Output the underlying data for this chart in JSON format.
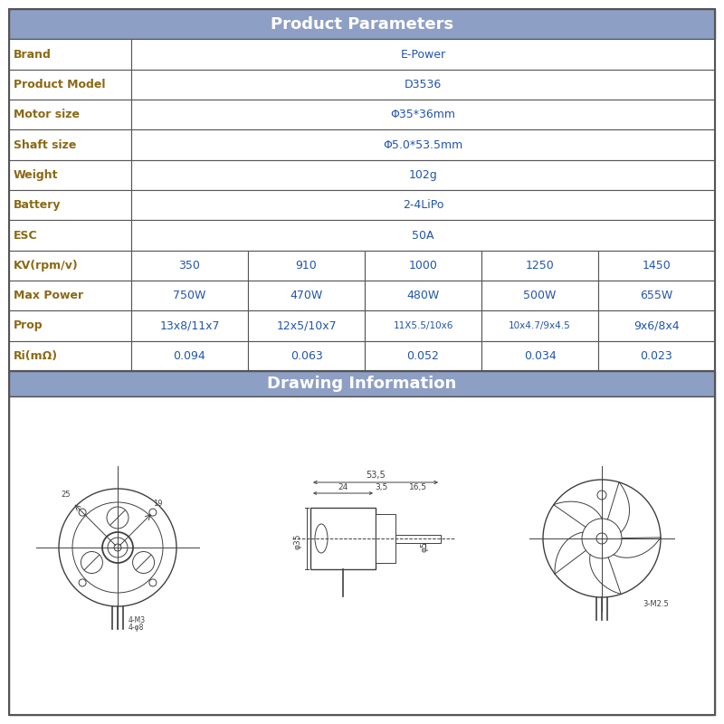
{
  "title": "Product Parameters",
  "drawing_title": "Drawing Information",
  "header_bg": "#8E9FC5",
  "header_text_color": "#FFFFFF",
  "row_label_color": "#8B6914",
  "value_color": "#2255AA",
  "border_color": "#555555",
  "bg_color": "#FFFFFF",
  "outer_bg": "#FFFFFF",
  "simple_rows": [
    [
      "Brand",
      "E-Power"
    ],
    [
      "Product Model",
      "D3536"
    ],
    [
      "Motor size",
      "Φ35*36mm"
    ],
    [
      "Shaft size",
      "Φ5.0*53.5mm"
    ],
    [
      "Weight",
      "102g"
    ],
    [
      "Battery",
      "2-4LiPo"
    ],
    [
      "ESC",
      "50A"
    ]
  ],
  "multi_col_headers": [
    "KV(rpm/v)",
    "Max Power",
    "Prop",
    "Ri(mΩ)"
  ],
  "multi_col_data": [
    [
      "350",
      "750W",
      "13x8/11x7",
      "0.094"
    ],
    [
      "910",
      "470W",
      "12x5/10x7",
      "0.063"
    ],
    [
      "1000",
      "480W",
      "11X5.5/10x6",
      "0.052"
    ],
    [
      "1250",
      "500W",
      "10x4.7/9x4.5",
      "0.034"
    ],
    [
      "1450",
      "655W",
      "9x6/8x4",
      "0.023"
    ]
  ],
  "fig_width": 8.0,
  "fig_height": 8.0,
  "dpi": 100
}
